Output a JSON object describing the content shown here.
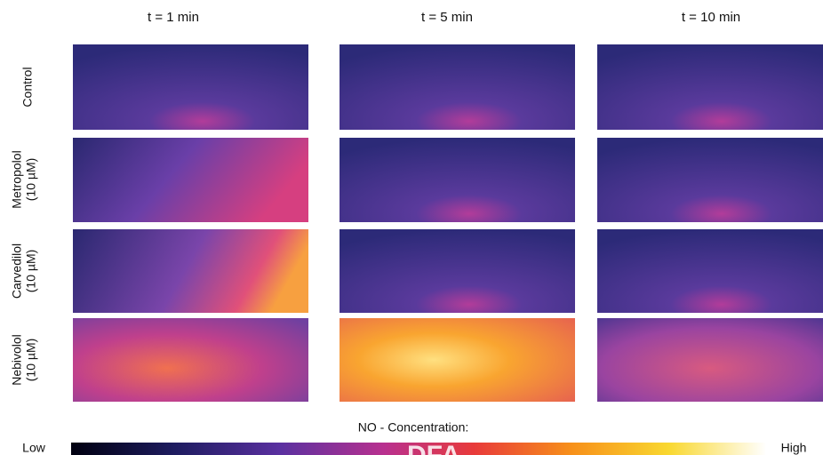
{
  "columns": [
    "t = 1 min",
    "t = 5 min",
    "t = 10 min"
  ],
  "rows": [
    {
      "label": [
        "Control"
      ]
    },
    {
      "label": [
        "Metropolol",
        "(10 µM)"
      ]
    },
    {
      "label": [
        "Carvedilol",
        "(10 µM)"
      ]
    },
    {
      "label": [
        "Nebivolol",
        "(10 µM)"
      ]
    }
  ],
  "colorbar": {
    "title": "NO - Concentration:",
    "low": "Low",
    "high": "High"
  },
  "watermark": "DFA"
}
